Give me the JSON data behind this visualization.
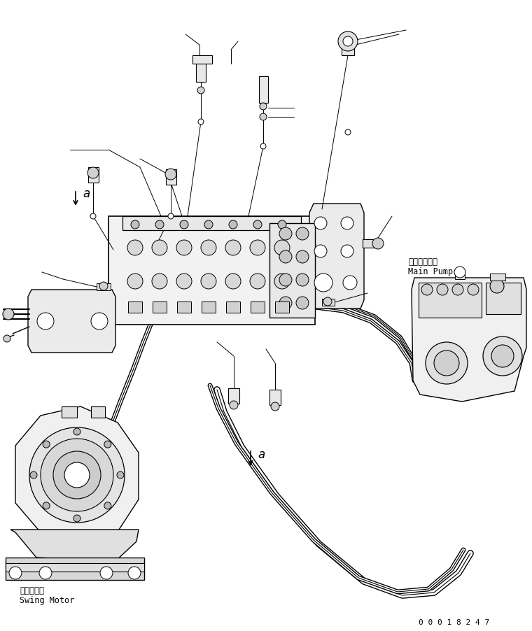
{
  "bg_color": "#ffffff",
  "line_color": "#000000",
  "title_doc_number": "0 0 0 1 8 2 4 7",
  "label_main_pump_jp": "メインポンプ",
  "label_main_pump_en": "Main Pump",
  "label_swing_motor_jp": "旋回モータ",
  "label_swing_motor_en": "Swing Motor",
  "label_a": "a"
}
